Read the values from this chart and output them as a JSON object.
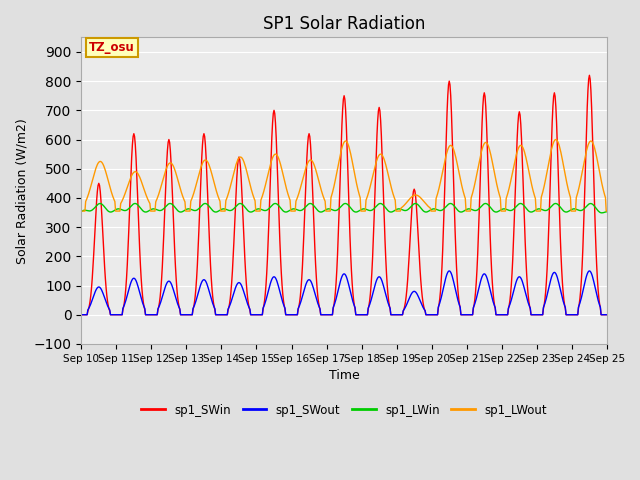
{
  "title": "SP1 Solar Radiation",
  "xlabel": "Time",
  "ylabel": "Solar Radiation (W/m2)",
  "ylim": [
    -100,
    950
  ],
  "yticks": [
    -100,
    0,
    100,
    200,
    300,
    400,
    500,
    600,
    700,
    800,
    900
  ],
  "xlim_start": 0,
  "xlim_end": 360,
  "xtick_labels": [
    "Sep 10",
    "Sep 11",
    "Sep 12",
    "Sep 13",
    "Sep 14",
    "Sep 15",
    "Sep 16",
    "Sep 17",
    "Sep 18",
    "Sep 19",
    "Sep 20",
    "Sep 21",
    "Sep 22",
    "Sep 23",
    "Sep 24",
    "Sep 25"
  ],
  "xtick_positions": [
    0,
    24,
    48,
    72,
    96,
    120,
    144,
    168,
    192,
    216,
    240,
    264,
    288,
    312,
    336,
    360
  ],
  "series_colors": [
    "#ff0000",
    "#0000ff",
    "#00cc00",
    "#ff9900"
  ],
  "series_names": [
    "sp1_SWin",
    "sp1_SWout",
    "sp1_LWin",
    "sp1_LWout"
  ],
  "tz_label": "TZ_osu",
  "background_color": "#e0e0e0",
  "plot_background": "#ebebeb",
  "grid_color": "#ffffff",
  "title_fontsize": 12,
  "sw_in_peaks": [
    450,
    620,
    600,
    620,
    540,
    700,
    620,
    750,
    710,
    430,
    800,
    760,
    695,
    760,
    820,
    820
  ],
  "sw_out_peaks": [
    95,
    125,
    115,
    120,
    110,
    130,
    120,
    140,
    130,
    80,
    150,
    140,
    130,
    145,
    150,
    150
  ],
  "lw_out_peaks": [
    525,
    490,
    520,
    530,
    540,
    550,
    530,
    595,
    550,
    410,
    580,
    590,
    580,
    600,
    595,
    380
  ],
  "lw_in_base": 338,
  "lw_out_base": 355
}
